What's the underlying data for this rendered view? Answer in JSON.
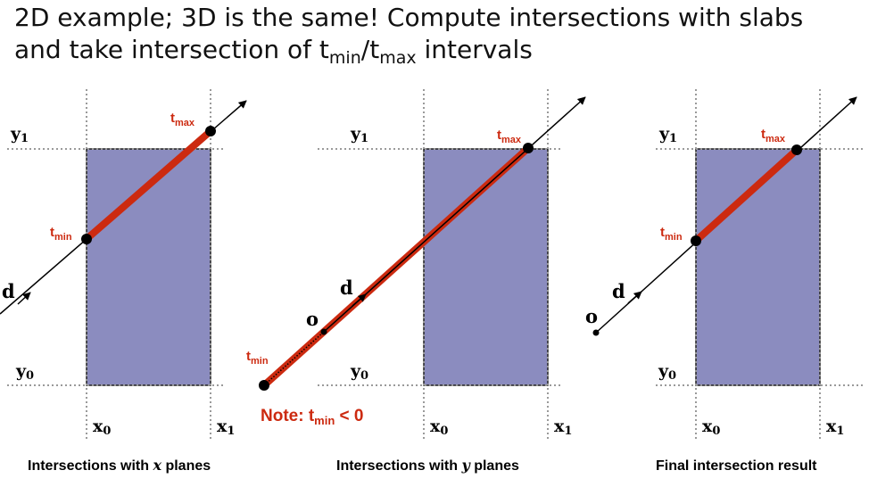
{
  "title": {
    "line1": "2D example; 3D is the same!  Compute intersections with slabs",
    "line2_prefix": "and take intersection of t",
    "min_sub": "min",
    "slash": "/t",
    "max_sub": "max",
    "line2_suffix": " intervals"
  },
  "labels": {
    "t": "t",
    "min": "min",
    "max": "max",
    "y1": "y",
    "y1_sub": "1",
    "y0": "y",
    "y0_sub": "0",
    "x0": "x",
    "x0_sub": "0",
    "x1": "x",
    "x1_sub": "1",
    "d": "d",
    "o": "o"
  },
  "panels": {
    "left_caption_a": "Intersections with ",
    "left_caption_var": "x",
    "left_caption_b": " planes",
    "middle_caption_a": "Intersections with ",
    "middle_caption_var": "y",
    "middle_caption_b": " planes",
    "right_caption": "Final intersection result"
  },
  "note": {
    "prefix": "Note:  t",
    "sub": "min",
    "suffix": " < 0"
  },
  "colors": {
    "box_fill": "#8b8cbf",
    "red": "#cc2a10",
    "grid": "#9a9a9a"
  }
}
